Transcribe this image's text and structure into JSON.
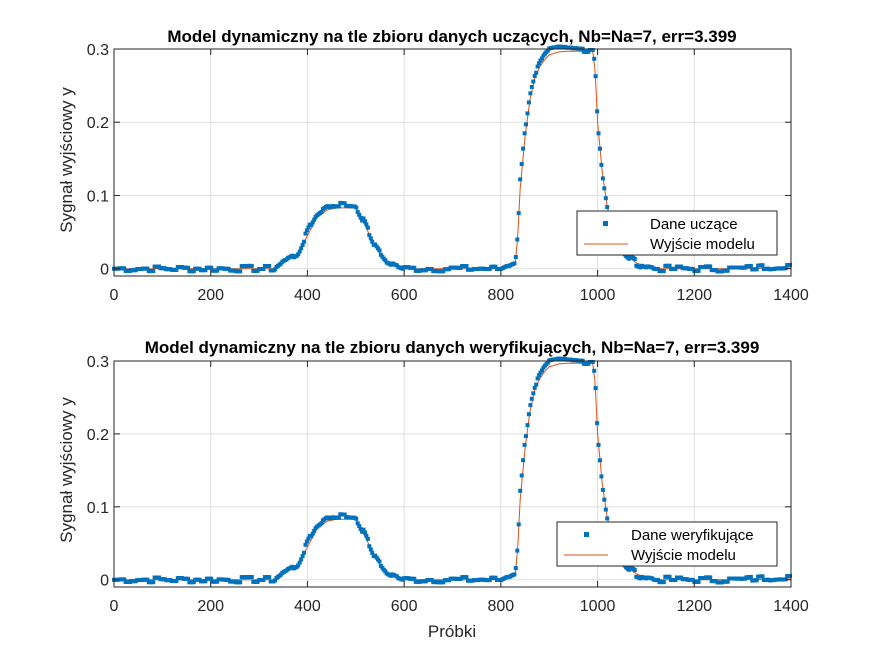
{
  "colors": {
    "data": "#0072BD",
    "model": "#D95319",
    "grid": "#DFDFDF",
    "axis": "#262626"
  },
  "chart_data": [
    {
      "type": "line",
      "title": "Model dynamiczny na tle zbioru danych uczących, Nb=Na=7, err=3.399",
      "xlabel": "",
      "ylabel": "Sygnał wyjściowy y",
      "xlim": [
        0,
        1400
      ],
      "ylim": [
        -0.01,
        0.3
      ],
      "xticks": [
        0,
        200,
        400,
        600,
        800,
        1000,
        1200,
        1400
      ],
      "xtick_labels": [
        "0",
        "200",
        "400",
        "600",
        "800",
        "1000",
        "1200",
        "1400"
      ],
      "yticks": [
        0,
        0.1,
        0.2,
        0.3
      ],
      "ytick_labels": [
        "0",
        "0.1",
        "0.2",
        "0.3"
      ],
      "grid": true,
      "legend_position": "lower-right",
      "series": [
        {
          "name": "Dane uczące",
          "style": "markers",
          "color": "#0072BD",
          "x": [
            0,
            330,
            350,
            380,
            400,
            420,
            440,
            460,
            480,
            500,
            520,
            540,
            560,
            580,
            600,
            700,
            800,
            830,
            835,
            840,
            850,
            860,
            870,
            880,
            890,
            900,
            920,
            940,
            960,
            980,
            990,
            995,
            1000,
            1010,
            1020,
            1030,
            1040,
            1060,
            1080,
            1100,
            1120,
            1200,
            1300,
            1400
          ],
          "y": [
            0,
            0,
            0.01,
            0.02,
            0.05,
            0.075,
            0.085,
            0.088,
            0.087,
            0.086,
            0.06,
            0.03,
            0.012,
            0.005,
            0,
            0,
            0,
            0.01,
            0.05,
            0.12,
            0.19,
            0.24,
            0.265,
            0.28,
            0.29,
            0.297,
            0.3,
            0.3,
            0.3,
            0.3,
            0.3,
            0.28,
            0.2,
            0.13,
            0.085,
            0.055,
            0.035,
            0.018,
            0.008,
            0.003,
            0,
            0,
            0,
            0.005
          ]
        },
        {
          "name": "Wyjście modelu",
          "style": "line",
          "color": "#D95319",
          "x": [
            0,
            330,
            350,
            380,
            400,
            420,
            440,
            460,
            480,
            500,
            520,
            540,
            560,
            580,
            600,
            700,
            800,
            830,
            835,
            840,
            850,
            860,
            870,
            880,
            890,
            900,
            920,
            940,
            960,
            980,
            990,
            995,
            1000,
            1010,
            1020,
            1030,
            1040,
            1060,
            1080,
            1100,
            1120,
            1200,
            1300,
            1400
          ],
          "y": [
            0,
            0,
            0.008,
            0.02,
            0.045,
            0.07,
            0.08,
            0.083,
            0.083,
            0.083,
            0.058,
            0.03,
            0.012,
            0.004,
            0,
            0,
            0,
            0.008,
            0.045,
            0.11,
            0.18,
            0.23,
            0.26,
            0.275,
            0.285,
            0.292,
            0.296,
            0.297,
            0.297,
            0.297,
            0.297,
            0.27,
            0.2,
            0.13,
            0.085,
            0.055,
            0.035,
            0.018,
            0.008,
            0.003,
            0,
            0,
            0,
            0.001
          ]
        }
      ]
    },
    {
      "type": "line",
      "title": "Model dynamiczny na tle zbioru danych weryfikujących, Nb=Na=7, err=3.399",
      "xlabel": "Próbki",
      "ylabel": "Sygnał wyjściowy y",
      "xlim": [
        0,
        1400
      ],
      "ylim": [
        -0.01,
        0.3
      ],
      "xticks": [
        0,
        200,
        400,
        600,
        800,
        1000,
        1200,
        1400
      ],
      "xtick_labels": [
        "0",
        "200",
        "400",
        "600",
        "800",
        "1000",
        "1200",
        "1400"
      ],
      "yticks": [
        0,
        0.1,
        0.2,
        0.3
      ],
      "ytick_labels": [
        "0",
        "0.1",
        "0.2",
        "0.3"
      ],
      "grid": true,
      "legend_position": "lower-right",
      "series": [
        {
          "name": "Dane weryfikujące",
          "style": "markers",
          "color": "#0072BD",
          "x": [
            0,
            330,
            350,
            380,
            400,
            420,
            440,
            460,
            480,
            500,
            520,
            540,
            560,
            580,
            600,
            700,
            800,
            830,
            835,
            840,
            850,
            860,
            870,
            880,
            890,
            900,
            920,
            940,
            960,
            980,
            990,
            995,
            1000,
            1010,
            1020,
            1030,
            1040,
            1060,
            1080,
            1100,
            1120,
            1200,
            1300,
            1400
          ],
          "y": [
            0,
            0,
            0.01,
            0.02,
            0.05,
            0.075,
            0.085,
            0.088,
            0.087,
            0.086,
            0.06,
            0.03,
            0.012,
            0.005,
            0,
            0,
            0,
            0.01,
            0.05,
            0.12,
            0.19,
            0.24,
            0.265,
            0.28,
            0.29,
            0.297,
            0.3,
            0.3,
            0.3,
            0.3,
            0.3,
            0.28,
            0.2,
            0.13,
            0.085,
            0.055,
            0.035,
            0.018,
            0.008,
            0.003,
            0,
            0,
            0,
            0.005
          ]
        },
        {
          "name": "Wyjście modelu",
          "style": "line",
          "color": "#D95319",
          "x": [
            0,
            330,
            350,
            380,
            400,
            420,
            440,
            460,
            480,
            500,
            520,
            540,
            560,
            580,
            600,
            700,
            800,
            830,
            835,
            840,
            850,
            860,
            870,
            880,
            890,
            900,
            920,
            940,
            960,
            980,
            990,
            995,
            1000,
            1010,
            1020,
            1030,
            1040,
            1060,
            1080,
            1100,
            1120,
            1200,
            1300,
            1400
          ],
          "y": [
            0,
            0,
            0.008,
            0.02,
            0.045,
            0.07,
            0.08,
            0.083,
            0.083,
            0.083,
            0.058,
            0.03,
            0.012,
            0.004,
            0,
            0,
            0,
            0.008,
            0.045,
            0.11,
            0.18,
            0.23,
            0.26,
            0.275,
            0.285,
            0.292,
            0.296,
            0.297,
            0.297,
            0.297,
            0.297,
            0.27,
            0.2,
            0.13,
            0.085,
            0.055,
            0.035,
            0.018,
            0.008,
            0.003,
            0,
            0,
            0,
            0.001
          ]
        }
      ]
    }
  ]
}
